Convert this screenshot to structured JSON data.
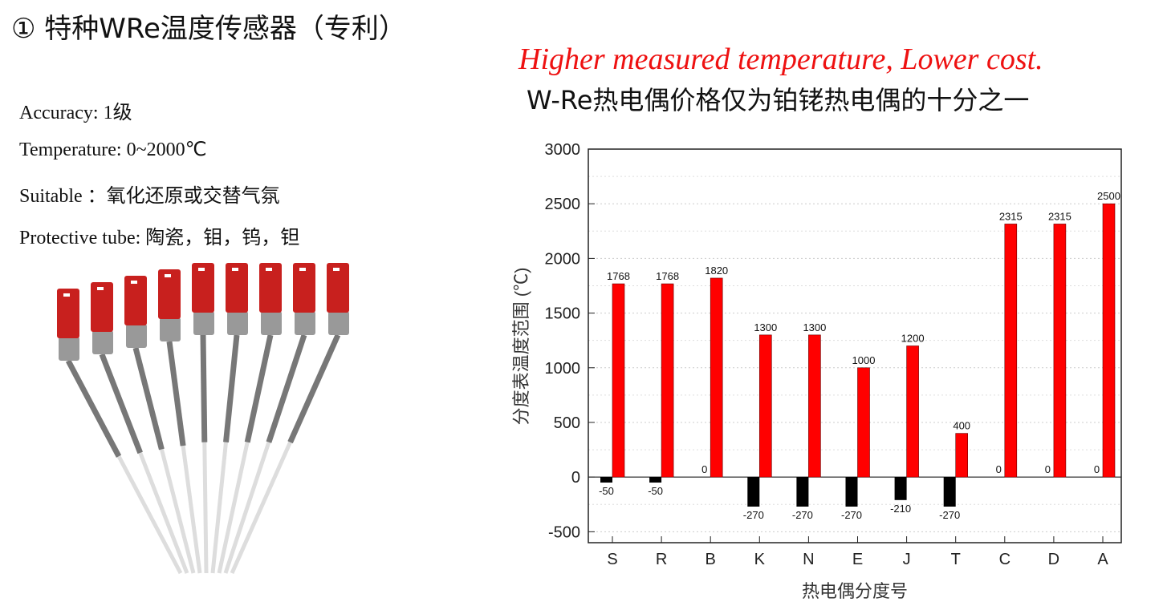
{
  "slide": {
    "title": "① 特种WRe温度传感器（专利）",
    "specs": [
      "Accuracy: 1级",
      "Temperature: 0~2000℃",
      "Suitable ：氧化还原或交替气氛",
      "Protective tube: 陶瓷，钼，钨，钽"
    ],
    "slogan": "Higher measured temperature, Lower cost.",
    "subtitle": "W-Re热电偶价格仅为铂铑热电偶的十分之一",
    "slogan_color": "#ee1111"
  },
  "chart_data": {
    "type": "bar",
    "categories": [
      "S",
      "R",
      "B",
      "K",
      "N",
      "E",
      "J",
      "T",
      "C",
      "D",
      "A"
    ],
    "series": [
      {
        "values": [
          -50,
          -50,
          0,
          -270,
          -270,
          -270,
          -210,
          -270,
          0,
          0,
          0
        ],
        "color": "#000000"
      },
      {
        "values": [
          1768,
          1768,
          1820,
          1300,
          1300,
          1000,
          1200,
          400,
          2315,
          2315,
          2500
        ],
        "color": "#ff0000"
      }
    ],
    "xlabel": "热电偶分度号",
    "ylabel": "分度表温度范围 (℃)",
    "ylim": [
      -600,
      3000
    ],
    "yticks": [
      -500,
      0,
      500,
      1000,
      1500,
      2000,
      2500,
      3000
    ],
    "grid": true
  }
}
